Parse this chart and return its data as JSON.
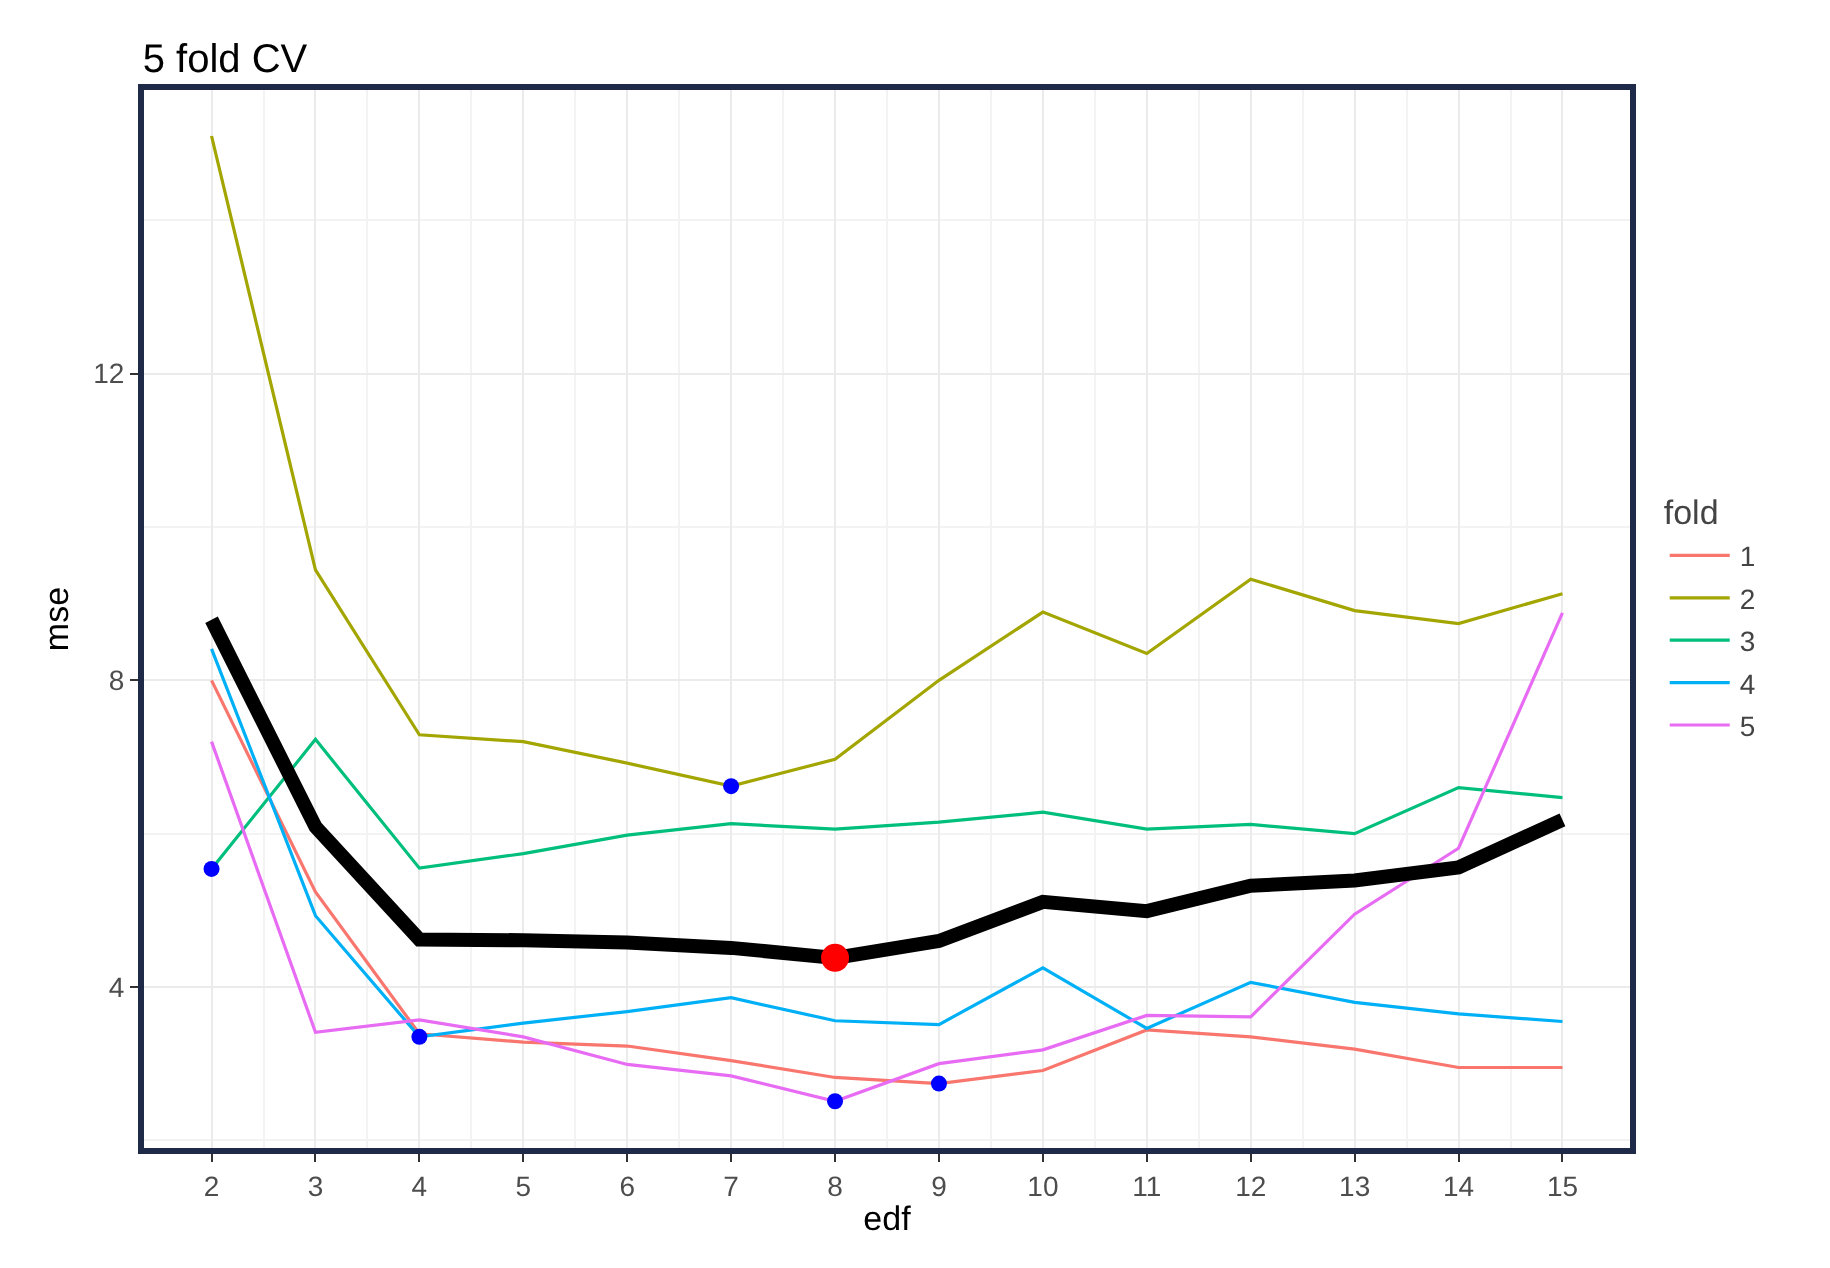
{
  "chart_data": {
    "type": "line",
    "title": "5 fold CV",
    "xlabel": "edf",
    "ylabel": "mse",
    "legend_title": "fold",
    "x": [
      2,
      3,
      4,
      5,
      6,
      7,
      8,
      9,
      10,
      11,
      12,
      13,
      14,
      15
    ],
    "series": [
      {
        "name": "1",
        "color": "#f8766d",
        "values": [
          8.0,
          5.24,
          3.39,
          3.28,
          3.23,
          3.04,
          2.82,
          2.74,
          2.91,
          3.44,
          3.35,
          3.19,
          2.95,
          2.95
        ]
      },
      {
        "name": "2",
        "color": "#a3a500",
        "values": [
          15.1,
          9.44,
          7.29,
          7.2,
          6.92,
          6.62,
          6.97,
          8.0,
          8.89,
          8.35,
          9.32,
          8.91,
          8.74,
          9.13
        ]
      },
      {
        "name": "3",
        "color": "#00bf7d",
        "values": [
          5.54,
          7.23,
          5.55,
          5.74,
          5.98,
          6.13,
          6.06,
          6.15,
          6.28,
          6.06,
          6.12,
          6.0,
          6.6,
          6.47
        ]
      },
      {
        "name": "4",
        "color": "#00b0f6",
        "values": [
          8.41,
          4.93,
          3.35,
          3.53,
          3.68,
          3.86,
          3.56,
          3.51,
          4.25,
          3.46,
          4.06,
          3.8,
          3.65,
          3.55
        ]
      },
      {
        "name": "5",
        "color": "#e76bf3",
        "values": [
          7.2,
          3.41,
          3.57,
          3.35,
          2.99,
          2.84,
          2.51,
          3.0,
          3.18,
          3.63,
          3.61,
          4.95,
          5.81,
          8.88
        ]
      },
      {
        "color": "#000000",
        "values": [
          8.79,
          6.09,
          4.62,
          4.61,
          4.58,
          4.51,
          4.38,
          4.6,
          5.11,
          4.99,
          5.32,
          5.39,
          5.56,
          6.18
        ]
      },
      {
        "type": "scatter",
        "marker": "circle",
        "color": "#0000ff",
        "x": [
          2,
          4,
          7,
          8,
          9
        ],
        "values": [
          5.54,
          3.35,
          6.62,
          2.51,
          2.74
        ]
      },
      {
        "type": "scatter",
        "marker": "circle",
        "color": "#ff0000",
        "x": [
          8
        ],
        "values": [
          4.38
        ]
      }
    ],
    "xlim": [
      1.35,
      15.65
    ],
    "xticks": [
      2,
      3,
      4,
      5,
      6,
      7,
      8,
      9,
      10,
      11,
      12,
      13,
      14,
      15
    ],
    "ylim": [
      1.9,
      15.7
    ],
    "yticks": [
      4,
      8,
      12
    ],
    "grid": true,
    "legend": "right",
    "line_style": "solid"
  }
}
